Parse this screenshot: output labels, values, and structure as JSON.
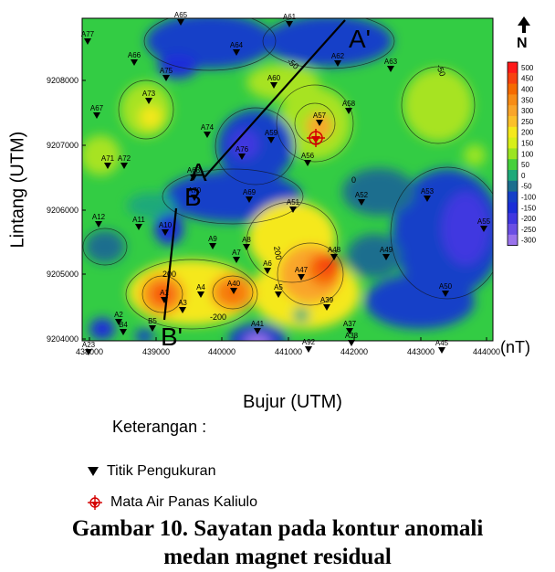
{
  "figure": {
    "xlabel": "Bujur (UTM)",
    "ylabel": "Lintang (UTM)",
    "unit": "(nT)",
    "north_label": "N",
    "x_ticks": [
      "438000",
      "439000",
      "440000",
      "441000",
      "442000",
      "443000",
      "444000"
    ],
    "y_ticks": [
      "9208000",
      "9207000",
      "9206000",
      "9205000",
      "9204000"
    ],
    "section_labels": [
      "A",
      "A'",
      "B",
      "B'"
    ],
    "contour_labels": [
      "-50",
      "-50",
      "200",
      "200",
      "-200",
      "0"
    ],
    "stations": [
      "A77",
      "A65",
      "A61",
      "A66",
      "A64",
      "A62",
      "A63",
      "A75",
      "A60",
      "A73",
      "A67",
      "A74",
      "A58",
      "A57",
      "A59",
      "A76",
      "A71",
      "A72",
      "A56",
      "A68",
      "A70",
      "A69",
      "A51",
      "A52",
      "A53",
      "A12",
      "A11",
      "A10",
      "A8",
      "A9",
      "A7",
      "A6",
      "A48",
      "A49",
      "A55",
      "A1",
      "A4",
      "A40",
      "A5",
      "A47",
      "A50",
      "A2",
      "B4",
      "B5",
      "A3",
      "A39",
      "A92",
      "A37",
      "A38",
      "A45",
      "A41",
      "A23"
    ],
    "colorbar": {
      "labels": [
        "500",
        "450",
        "400",
        "350",
        "300",
        "250",
        "200",
        "150",
        "100",
        "50",
        "0",
        "-50",
        "-100",
        "-150",
        "-200",
        "-250",
        "-300"
      ],
      "colors": [
        "#ff1a1a",
        "#f7420f",
        "#f56a00",
        "#f78c16",
        "#f9a52a",
        "#fbc02a",
        "#f5e81c",
        "#d8ef19",
        "#9be522",
        "#45d03c",
        "#1ea97a",
        "#1c6e8e",
        "#1540c8",
        "#1b2ed8",
        "#4037e0",
        "#6a4fe4",
        "#9a73ec"
      ]
    }
  },
  "legend": {
    "title": "Keterangan :",
    "items": [
      {
        "label": "Titik Pengukuran",
        "icon": "triangle-down-icon"
      },
      {
        "label": "Mata Air Panas Kaliulo",
        "icon": "hot-spring-icon"
      }
    ]
  },
  "caption": {
    "line1": "Gambar 10. Sayatan pada kontur anomali",
    "line2": "medan magnet residual"
  }
}
